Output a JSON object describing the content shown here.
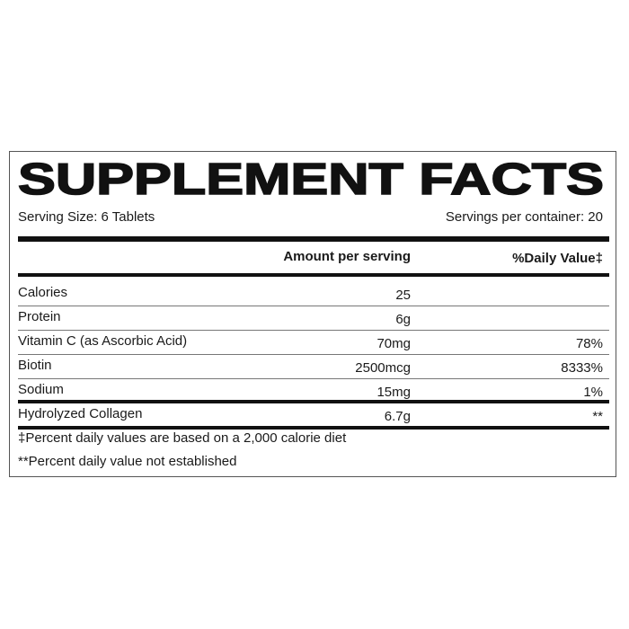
{
  "title": "SUPPLEMENT FACTS",
  "serving_size": "Serving Size: 6 Tablets",
  "servings_per_container": "Servings per container: 20",
  "headers": {
    "amount": "Amount per serving",
    "daily_value": "%Daily Value‡"
  },
  "rows": [
    {
      "name": "Calories",
      "amount": "25",
      "dv": ""
    },
    {
      "name": "Protein",
      "amount": "6g",
      "dv": ""
    },
    {
      "name": "Vitamin C (as Ascorbic Acid)",
      "amount": "70mg",
      "dv": "78%"
    },
    {
      "name": "Biotin",
      "amount": "2500mcg",
      "dv": "8333%"
    },
    {
      "name": "Sodium",
      "amount": "15mg",
      "dv": "1%"
    },
    {
      "name": "Hydrolyzed Collagen",
      "amount": "6.7g",
      "dv": "**"
    }
  ],
  "footnotes": [
    "‡Percent daily values are based on a 2,000 calorie diet",
    "**Percent daily value not established"
  ]
}
